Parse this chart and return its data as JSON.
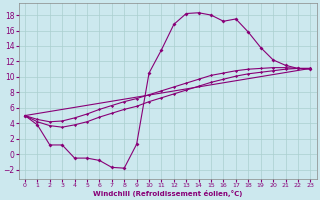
{
  "xlabel": "Windchill (Refroidissement éolien,°C)",
  "bg_color": "#cce8ee",
  "grid_color": "#aacfcf",
  "line_color": "#880077",
  "xlim": [
    -0.5,
    23.5
  ],
  "ylim": [
    -3.2,
    19.5
  ],
  "xticks": [
    0,
    1,
    2,
    3,
    4,
    5,
    6,
    7,
    8,
    9,
    10,
    11,
    12,
    13,
    14,
    15,
    16,
    17,
    18,
    19,
    20,
    21,
    22,
    23
  ],
  "yticks": [
    -2,
    0,
    2,
    4,
    6,
    8,
    10,
    12,
    14,
    16,
    18
  ],
  "line1_x": [
    0,
    1,
    2,
    3,
    4,
    5,
    6,
    7,
    8,
    9,
    10,
    11,
    12,
    13,
    14,
    15,
    16,
    17,
    18,
    19,
    20,
    21,
    22,
    23
  ],
  "line1_y": [
    5.0,
    3.8,
    1.2,
    1.2,
    -0.5,
    -0.5,
    -0.8,
    -1.7,
    -1.8,
    1.3,
    10.5,
    13.5,
    16.8,
    18.2,
    18.3,
    18.0,
    17.2,
    17.5,
    15.8,
    13.8,
    12.2,
    11.5,
    11.1,
    11.0
  ],
  "line2_x": [
    0,
    1,
    2,
    3,
    4,
    5,
    6,
    7,
    8,
    9,
    10,
    11,
    12,
    13,
    14,
    15,
    16,
    17,
    18,
    19,
    20,
    21,
    22,
    23
  ],
  "line2_y": [
    5.0,
    4.2,
    3.7,
    3.5,
    3.8,
    4.2,
    4.8,
    5.3,
    5.8,
    6.2,
    6.8,
    7.3,
    7.8,
    8.3,
    8.8,
    9.3,
    9.7,
    10.1,
    10.4,
    10.6,
    10.8,
    11.0,
    11.1,
    11.1
  ],
  "line3_x": [
    0,
    1,
    2,
    3,
    4,
    5,
    6,
    7,
    8,
    9,
    10,
    11,
    12,
    13,
    14,
    15,
    16,
    17,
    18,
    19,
    20,
    21,
    22,
    23
  ],
  "line3_y": [
    5.0,
    4.5,
    4.2,
    4.3,
    4.7,
    5.2,
    5.8,
    6.3,
    6.8,
    7.2,
    7.7,
    8.2,
    8.7,
    9.2,
    9.7,
    10.2,
    10.5,
    10.8,
    11.0,
    11.1,
    11.2,
    11.2,
    11.1,
    11.1
  ],
  "line4_x": [
    0,
    23
  ],
  "line4_y": [
    5.0,
    11.1
  ]
}
